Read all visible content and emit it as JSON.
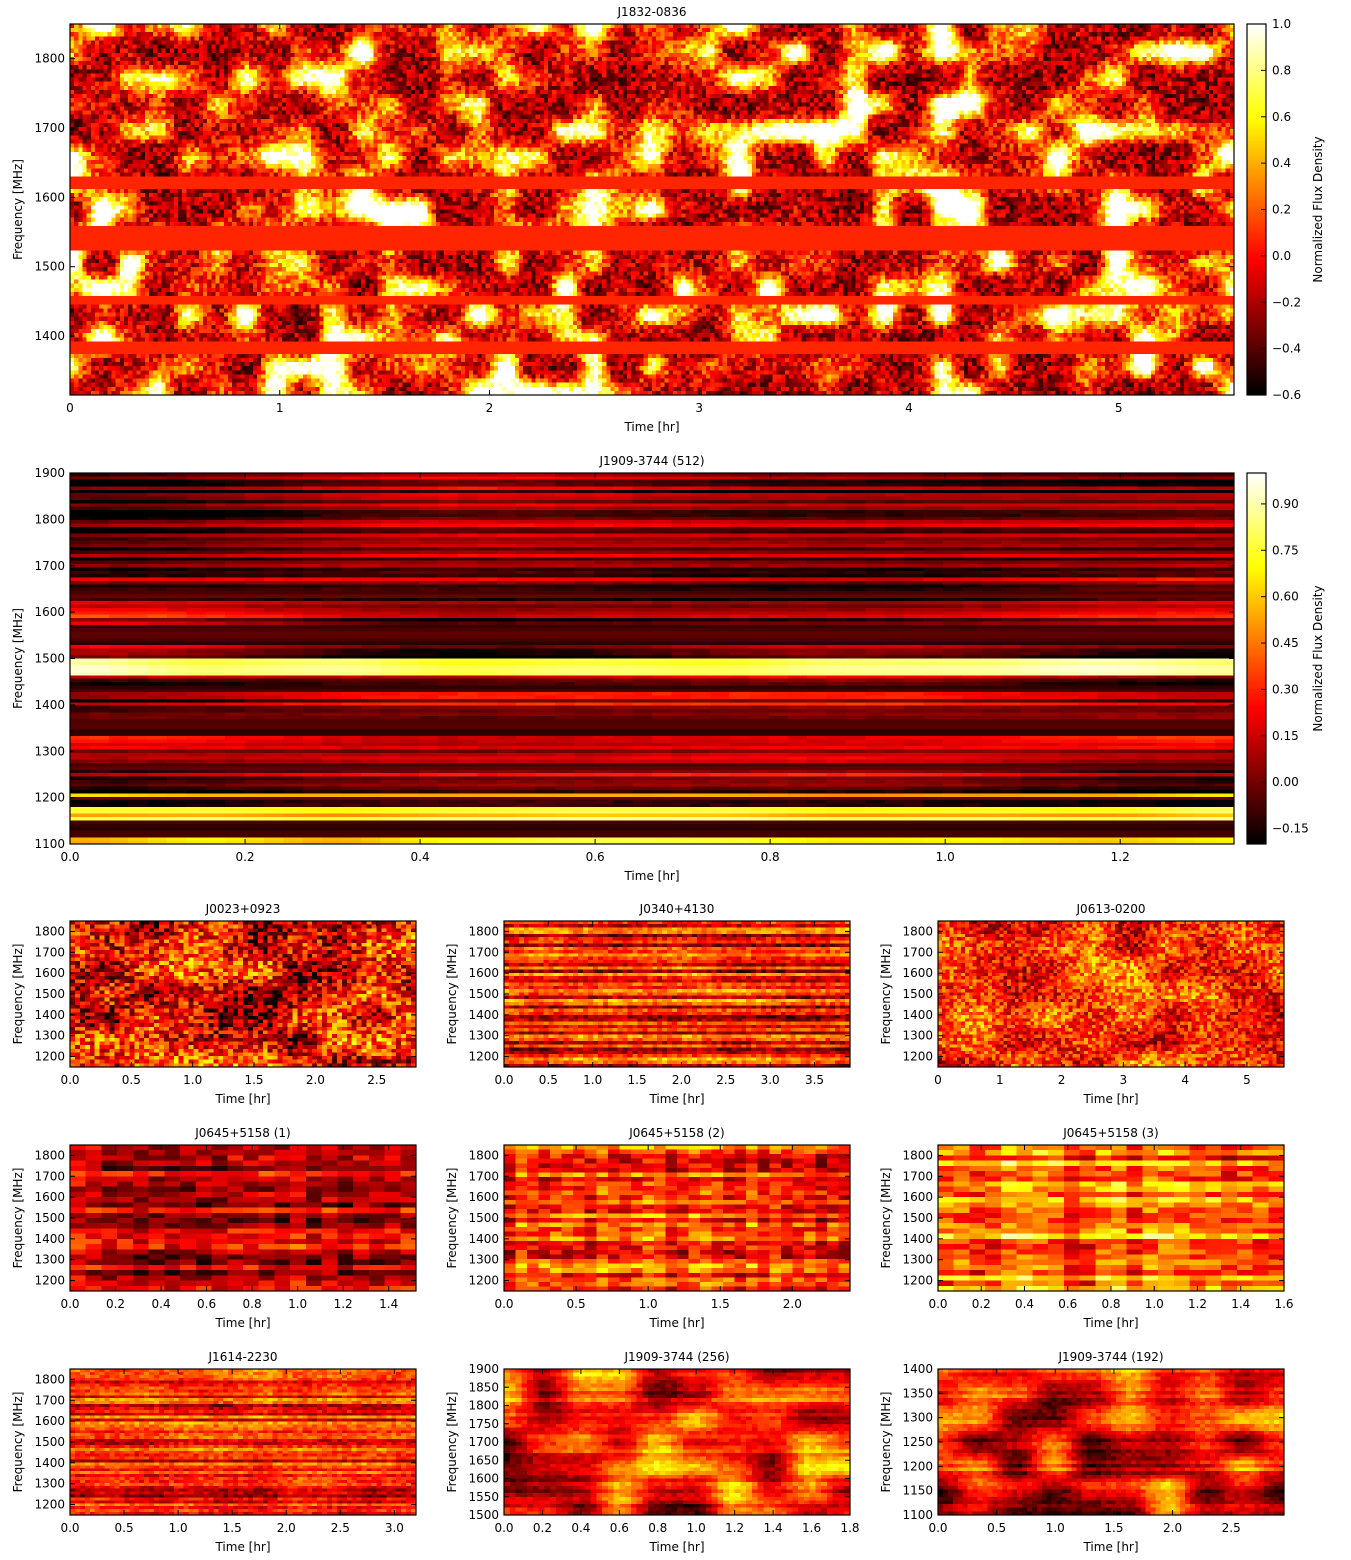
{
  "colors": {
    "cmap": "hot",
    "axis": "#000000",
    "background": "#ffffff"
  },
  "chart_data": [
    {
      "type": "heatmap",
      "title": "J1832-0836",
      "xlabel": "Time [hr]",
      "ylabel": "Frequency [MHz]",
      "xlim": [
        0,
        5.55
      ],
      "ylim": [
        1315,
        1850
      ],
      "xticks": [
        0,
        1,
        2,
        3,
        4,
        5
      ],
      "xtick_labels": [
        "0",
        "1",
        "2",
        "3",
        "4",
        "5"
      ],
      "yticks": [
        1400,
        1500,
        1600,
        1700,
        1800
      ],
      "ytick_labels": [
        "1400",
        "1500",
        "1600",
        "1700",
        "1800"
      ],
      "colorbar": {
        "label": "Normalized Flux Density",
        "range": [
          -0.6,
          1.0
        ],
        "ticks": [
          1.0,
          0.8,
          0.6,
          0.4,
          0.2,
          0.0,
          -0.2,
          -0.4,
          -0.6
        ],
        "tick_labels": [
          "1.0",
          "0.8",
          "0.6",
          "0.4",
          "0.2",
          "0.0",
          "−0.2",
          "−0.4",
          "−0.6"
        ]
      },
      "pattern": "scintles",
      "mean": 0.08,
      "contrast": 0.55,
      "masked_bands_mhz": [
        [
          1614,
          1632
        ],
        [
          1522,
          1560
        ],
        [
          1447,
          1454
        ],
        [
          1375,
          1388
        ]
      ]
    },
    {
      "type": "heatmap",
      "title": "J1909-3744 (512)",
      "xlabel": "Time [hr]",
      "ylabel": "Frequency [MHz]",
      "xlim": [
        0,
        1.33
      ],
      "ylim": [
        1100,
        1900
      ],
      "xticks": [
        0.0,
        0.2,
        0.4,
        0.6,
        0.8,
        1.0,
        1.2
      ],
      "xtick_labels": [
        "0.0",
        "0.2",
        "0.4",
        "0.6",
        "0.8",
        "1.0",
        "1.2"
      ],
      "yticks": [
        1100,
        1200,
        1300,
        1400,
        1500,
        1600,
        1700,
        1800,
        1900
      ],
      "ytick_labels": [
        "1100",
        "1200",
        "1300",
        "1400",
        "1500",
        "1600",
        "1700",
        "1800",
        "1900"
      ],
      "colorbar": {
        "label": "Normalized Flux Density",
        "range": [
          -0.2,
          1.0
        ],
        "ticks": [
          0.9,
          0.75,
          0.6,
          0.45,
          0.3,
          0.15,
          0.0,
          -0.15
        ],
        "tick_labels": [
          "0.90",
          "0.75",
          "0.60",
          "0.45",
          "0.30",
          "0.15",
          "0.00",
          "−0.15"
        ]
      },
      "pattern": "bands",
      "mean": 0.12,
      "contrast": 0.3,
      "dark_bands_mhz": [
        [
          1630,
          1645
        ],
        [
          1530,
          1575
        ],
        [
          1430,
          1440
        ],
        [
          1330,
          1365
        ],
        [
          1260,
          1270
        ],
        [
          1195,
          1200
        ],
        [
          1110,
          1150
        ]
      ],
      "bright_bands_mhz": [
        [
          1465,
          1500
        ],
        [
          1150,
          1175
        ],
        [
          1100,
          1108
        ],
        [
          1200,
          1210
        ]
      ]
    },
    {
      "type": "heatmap",
      "title": "J0023+0923",
      "xlabel": "Time [hr]",
      "ylabel": "Frequency [MHz]",
      "xlim": [
        0,
        2.82
      ],
      "ylim": [
        1150,
        1850
      ],
      "xticks": [
        0.0,
        0.5,
        1.0,
        1.5,
        2.0,
        2.5
      ],
      "xtick_labels": [
        "0.0",
        "0.5",
        "1.0",
        "1.5",
        "2.0",
        "2.5"
      ],
      "yticks": [
        1200,
        1300,
        1400,
        1500,
        1600,
        1700,
        1800
      ],
      "ytick_labels": [
        "1200",
        "1300",
        "1400",
        "1500",
        "1600",
        "1700",
        "1800"
      ],
      "pattern": "pixel",
      "mean": 0.35,
      "contrast": 0.45
    },
    {
      "type": "heatmap",
      "title": "J0340+4130",
      "xlabel": "Time [hr]",
      "ylabel": "Frequency [MHz]",
      "xlim": [
        0,
        3.9
      ],
      "ylim": [
        1150,
        1850
      ],
      "xticks": [
        0.0,
        0.5,
        1.0,
        1.5,
        2.0,
        2.5,
        3.0,
        3.5
      ],
      "xtick_labels": [
        "0.0",
        "0.5",
        "1.0",
        "1.5",
        "2.0",
        "2.5",
        "3.0",
        "3.5"
      ],
      "yticks": [
        1200,
        1300,
        1400,
        1500,
        1600,
        1700,
        1800
      ],
      "ytick_labels": [
        "1200",
        "1300",
        "1400",
        "1500",
        "1600",
        "1700",
        "1800"
      ],
      "pattern": "streaks",
      "mean": 0.4,
      "contrast": 0.35
    },
    {
      "type": "heatmap",
      "title": "J0613-0200",
      "xlabel": "Time [hr]",
      "ylabel": "Frequency [MHz]",
      "xlim": [
        0,
        5.6
      ],
      "ylim": [
        1150,
        1850
      ],
      "xticks": [
        0,
        1,
        2,
        3,
        4,
        5
      ],
      "xtick_labels": [
        "0",
        "1",
        "2",
        "3",
        "4",
        "5"
      ],
      "yticks": [
        1200,
        1300,
        1400,
        1500,
        1600,
        1700,
        1800
      ],
      "ytick_labels": [
        "1200",
        "1300",
        "1400",
        "1500",
        "1600",
        "1700",
        "1800"
      ],
      "pattern": "pixel",
      "mean": 0.45,
      "contrast": 0.35
    },
    {
      "type": "heatmap",
      "title": "J0645+5158 (1)",
      "xlabel": "Time [hr]",
      "ylabel": "Frequency [MHz]",
      "xlim": [
        0,
        1.52
      ],
      "ylim": [
        1150,
        1850
      ],
      "xticks": [
        0.0,
        0.2,
        0.4,
        0.6,
        0.8,
        1.0,
        1.2,
        1.4
      ],
      "xtick_labels": [
        "0.0",
        "0.2",
        "0.4",
        "0.6",
        "0.8",
        "1.0",
        "1.2",
        "1.4"
      ],
      "yticks": [
        1200,
        1300,
        1400,
        1500,
        1600,
        1700,
        1800
      ],
      "ytick_labels": [
        "1200",
        "1300",
        "1400",
        "1500",
        "1600",
        "1700",
        "1800"
      ],
      "pattern": "blocks",
      "mean": 0.3,
      "contrast": 0.3
    },
    {
      "type": "heatmap",
      "title": "J0645+5158 (2)",
      "xlabel": "Time [hr]",
      "ylabel": "Frequency [MHz]",
      "xlim": [
        0,
        2.4
      ],
      "ylim": [
        1150,
        1850
      ],
      "xticks": [
        0.0,
        0.5,
        1.0,
        1.5,
        2.0
      ],
      "xtick_labels": [
        "0.0",
        "0.5",
        "1.0",
        "1.5",
        "2.0"
      ],
      "yticks": [
        1200,
        1300,
        1400,
        1500,
        1600,
        1700,
        1800
      ],
      "ytick_labels": [
        "1200",
        "1300",
        "1400",
        "1500",
        "1600",
        "1700",
        "1800"
      ],
      "pattern": "blocks",
      "mean": 0.45,
      "contrast": 0.35
    },
    {
      "type": "heatmap",
      "title": "J0645+5158 (3)",
      "xlabel": "Time [hr]",
      "ylabel": "Frequency [MHz]",
      "xlim": [
        0,
        1.6
      ],
      "ylim": [
        1150,
        1850
      ],
      "xticks": [
        0.0,
        0.2,
        0.4,
        0.6,
        0.8,
        1.0,
        1.2,
        1.4,
        1.6
      ],
      "xtick_labels": [
        "0.0",
        "0.2",
        "0.4",
        "0.6",
        "0.8",
        "1.0",
        "1.2",
        "1.4",
        "1.6"
      ],
      "yticks": [
        1200,
        1300,
        1400,
        1500,
        1600,
        1700,
        1800
      ],
      "ytick_labels": [
        "1200",
        "1300",
        "1400",
        "1500",
        "1600",
        "1700",
        "1800"
      ],
      "pattern": "blocks",
      "mean": 0.55,
      "contrast": 0.35
    },
    {
      "type": "heatmap",
      "title": "J1614-2230",
      "xlabel": "Time [hr]",
      "ylabel": "Frequency [MHz]",
      "xlim": [
        0,
        3.2
      ],
      "ylim": [
        1150,
        1850
      ],
      "xticks": [
        0.0,
        0.5,
        1.0,
        1.5,
        2.0,
        2.5,
        3.0
      ],
      "xtick_labels": [
        "0.0",
        "0.5",
        "1.0",
        "1.5",
        "2.0",
        "2.5",
        "3.0"
      ],
      "yticks": [
        1200,
        1300,
        1400,
        1500,
        1600,
        1700,
        1800
      ],
      "ytick_labels": [
        "1200",
        "1300",
        "1400",
        "1500",
        "1600",
        "1700",
        "1800"
      ],
      "pattern": "streaks",
      "mean": 0.4,
      "contrast": 0.3
    },
    {
      "type": "heatmap",
      "title": "J1909-3744 (256)",
      "xlabel": "Time [hr]",
      "ylabel": "Frequency [MHz]",
      "xlim": [
        0,
        1.8
      ],
      "ylim": [
        1500,
        1900
      ],
      "xticks": [
        0.0,
        0.2,
        0.4,
        0.6,
        0.8,
        1.0,
        1.2,
        1.4,
        1.6,
        1.8
      ],
      "xtick_labels": [
        "0.0",
        "0.2",
        "0.4",
        "0.6",
        "0.8",
        "1.0",
        "1.2",
        "1.4",
        "1.6",
        "1.8"
      ],
      "yticks": [
        1500,
        1550,
        1600,
        1650,
        1700,
        1750,
        1800,
        1850,
        1900
      ],
      "ytick_labels": [
        "1500",
        "1550",
        "1600",
        "1650",
        "1700",
        "1750",
        "1800",
        "1850",
        "1900"
      ],
      "pattern": "smooth",
      "mean": 0.4,
      "contrast": 0.4
    },
    {
      "type": "heatmap",
      "title": "J1909-3744 (192)",
      "xlabel": "Time [hr]",
      "ylabel": "Frequency [MHz]",
      "xlim": [
        0,
        2.95
      ],
      "ylim": [
        1100,
        1400
      ],
      "xticks": [
        0.0,
        0.5,
        1.0,
        1.5,
        2.0,
        2.5
      ],
      "xtick_labels": [
        "0.0",
        "0.5",
        "1.0",
        "1.5",
        "2.0",
        "2.5"
      ],
      "yticks": [
        1100,
        1150,
        1200,
        1250,
        1300,
        1350,
        1400
      ],
      "ytick_labels": [
        "1100",
        "1150",
        "1200",
        "1250",
        "1300",
        "1350",
        "1400"
      ],
      "pattern": "smooth",
      "mean": 0.4,
      "contrast": 0.4
    }
  ]
}
